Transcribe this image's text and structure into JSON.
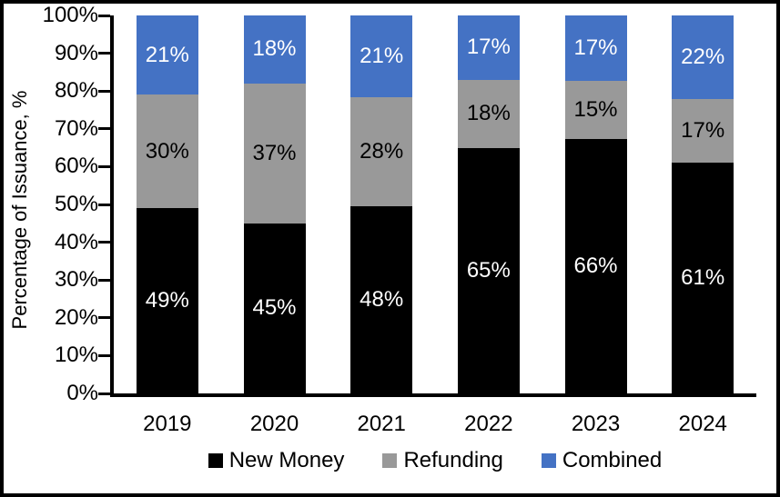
{
  "chart_data": {
    "type": "bar",
    "stacked": true,
    "title": "",
    "xlabel": "",
    "ylabel": "Percentage of Issuance, %",
    "ylim": [
      0,
      100
    ],
    "ytick_step": 10,
    "ytick_labels": [
      "0%",
      "10%",
      "20%",
      "30%",
      "40%",
      "50%",
      "60%",
      "70%",
      "80%",
      "90%",
      "100%"
    ],
    "categories": [
      "2019",
      "2020",
      "2021",
      "2022",
      "2023",
      "2024"
    ],
    "series": [
      {
        "name": "New Money",
        "color": "#000000",
        "label_color": "#ffffff",
        "values": [
          49,
          45,
          48,
          65,
          66,
          61
        ]
      },
      {
        "name": "Refunding",
        "color": "#999999",
        "label_color": "#000000",
        "values": [
          30,
          37,
          28,
          18,
          15,
          17
        ]
      },
      {
        "name": "Combined",
        "color": "#4472c4",
        "label_color": "#ffffff",
        "values": [
          21,
          18,
          21,
          17,
          17,
          22
        ]
      }
    ],
    "data_label_suffix": "%",
    "grid": false,
    "legend_position": "bottom"
  }
}
